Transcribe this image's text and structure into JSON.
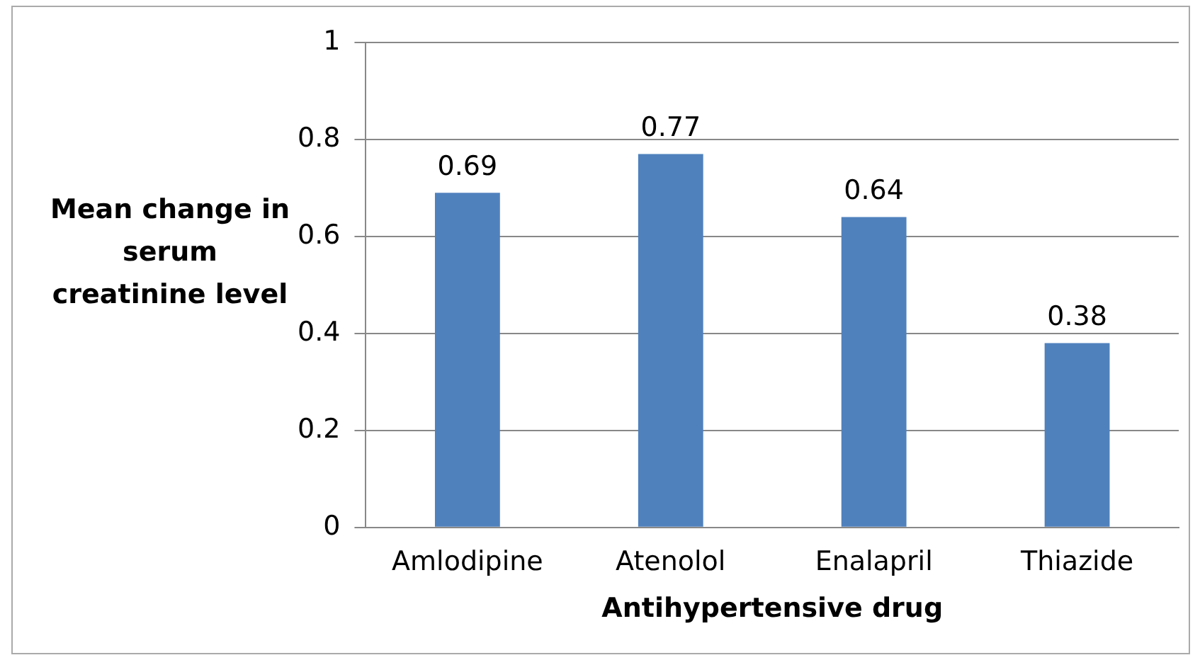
{
  "chart_data": {
    "type": "bar",
    "xlabel": "Antihypertensive drug",
    "ylabel": "Mean change in serum creatinine level",
    "categories": [
      "Amlodipine",
      "Atenolol",
      "Enalapril",
      "Thiazide"
    ],
    "values": [
      0.69,
      0.77,
      0.64,
      0.38
    ],
    "color": "#4f81bd",
    "ylim": [
      0,
      1
    ],
    "yticks": [
      0,
      0.2,
      0.4,
      0.6,
      0.8,
      1
    ],
    "grid": "y",
    "data_labels": true,
    "legend": false
  }
}
